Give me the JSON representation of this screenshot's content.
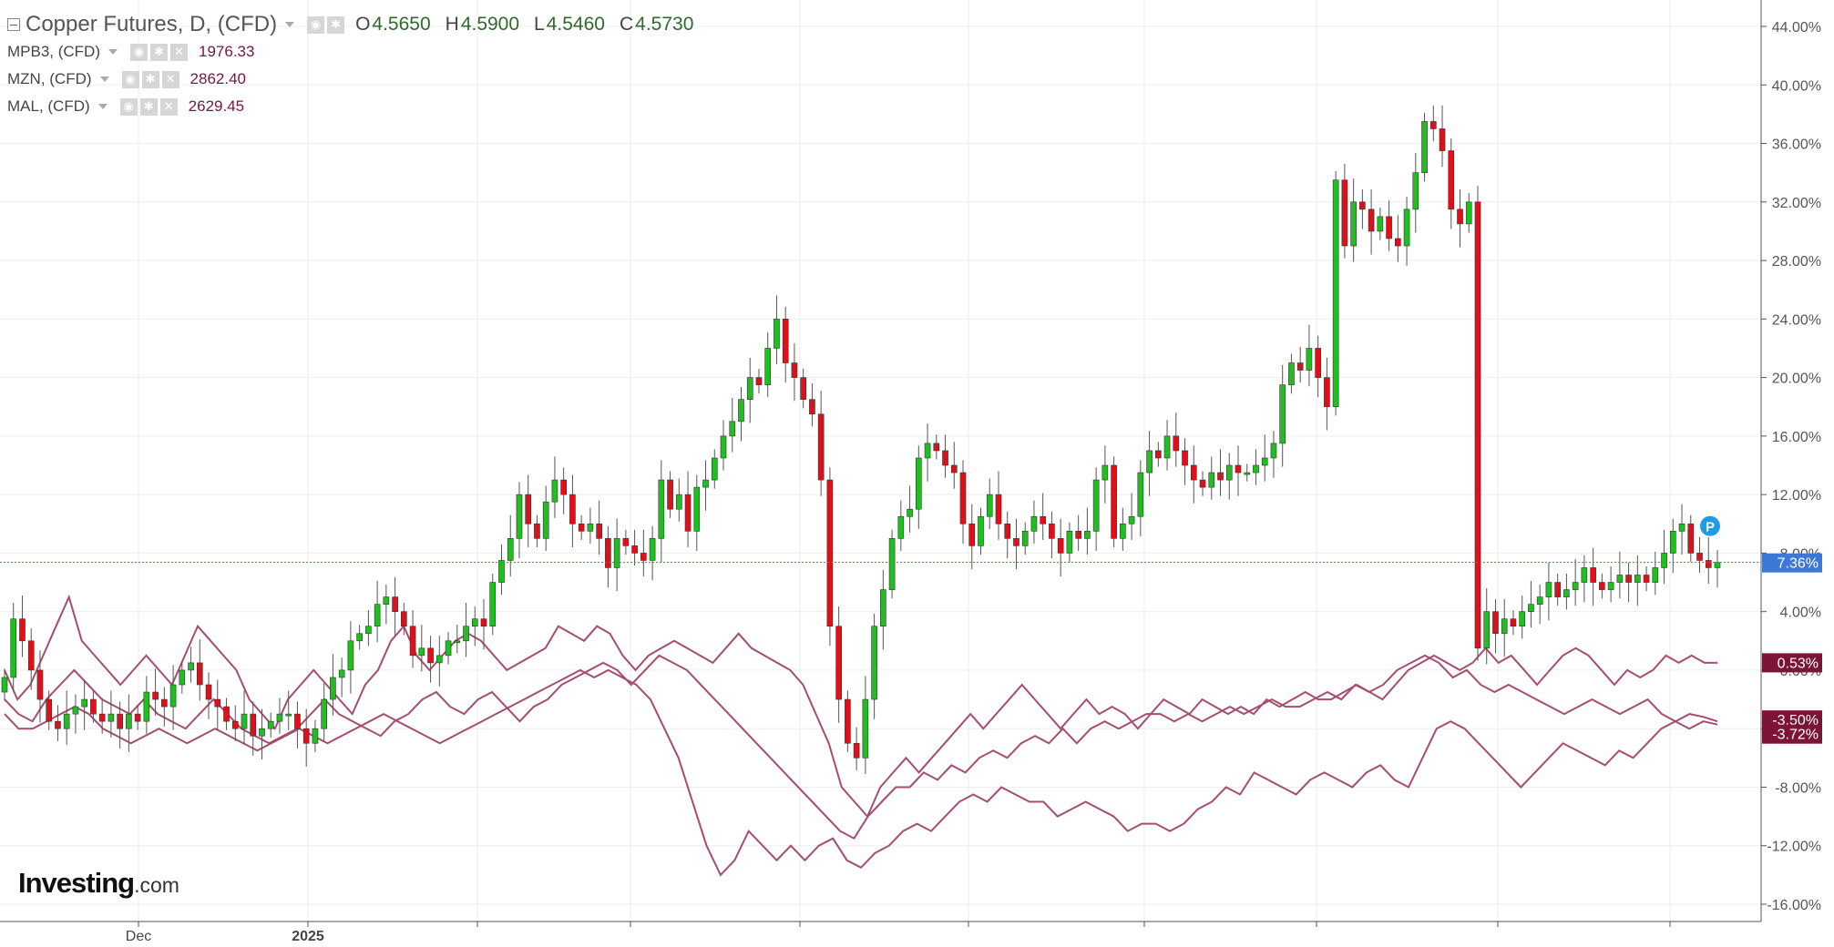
{
  "legend": {
    "main_title": "Copper Futures, D, (CFD)",
    "open_key": "O",
    "open": "4.5650",
    "high_key": "H",
    "high": "4.5900",
    "low_key": "L",
    "low": "4.5460",
    "close_key": "C",
    "close": "4.5730",
    "series": [
      {
        "name": "MPB3, (CFD)",
        "value": "1976.33"
      },
      {
        "name": "MZN, (CFD)",
        "value": "2862.40"
      },
      {
        "name": "MAL, (CFD)",
        "value": "2629.45"
      }
    ]
  },
  "brand": {
    "name": "Investing",
    "suffix": ".com"
  },
  "colors": {
    "up": "#1fbf1f",
    "down": "#e0101a",
    "compare_line": "#a64d6d",
    "badge_main": "#3c78d8",
    "badge_compare": "#7c1437",
    "grid": "#eeeeee"
  },
  "chart_data": {
    "type": "candlestick",
    "y_axis": {
      "unit": "%",
      "min": -16,
      "max": 44,
      "ticks": [
        "44.00%",
        "40.00%",
        "36.00%",
        "32.00%",
        "28.00%",
        "24.00%",
        "20.00%",
        "16.00%",
        "12.00%",
        "8.00%",
        "4.00%",
        "0.00%",
        "-4.00%",
        "-8.00%",
        "-12.00%",
        "-16.00%"
      ]
    },
    "x_axis": {
      "labels": [
        "Dec",
        "2025"
      ]
    },
    "last_value_labels": [
      "7.36%",
      "0.53%",
      "-3.50%",
      "-3.72%"
    ],
    "marker_label": "P",
    "copper_close_pct": [
      -0.5,
      3.5,
      2,
      0,
      -2,
      -3.5,
      -4,
      -3,
      -2.5,
      -2,
      -3,
      -3.5,
      -3,
      -4,
      -3,
      -3.5,
      -1.5,
      -2,
      -2.5,
      -1,
      0,
      0.5,
      -1,
      -2,
      -2.5,
      -3.5,
      -4,
      -3,
      -4.5,
      -4,
      -3.5,
      -3,
      -3,
      -4,
      -5,
      -4,
      -2,
      -0.5,
      0,
      2,
      2.5,
      3,
      4.5,
      5,
      4,
      3,
      1,
      1.5,
      0.5,
      1,
      2,
      2,
      3,
      3.5,
      3,
      6,
      7.5,
      9,
      12,
      10,
      9,
      11.5,
      13,
      12,
      10,
      9.5,
      10,
      9,
      7,
      9,
      8.5,
      8,
      7.5,
      9,
      13,
      11,
      12,
      9.5,
      12.5,
      13,
      14.5,
      16,
      17,
      18.5,
      20,
      19.5,
      22,
      24,
      21,
      20,
      18.5,
      17.5,
      13,
      3,
      -2,
      -5,
      -6,
      -2,
      3,
      5.5,
      9,
      10.5,
      11,
      14.5,
      15.5,
      15,
      14,
      13.5,
      10,
      8.5,
      10.5,
      12,
      10,
      9,
      8.5,
      9.5,
      10.5,
      10,
      9,
      8,
      9.5,
      9,
      9.5,
      13,
      14,
      9,
      10,
      10.5,
      13.5,
      15,
      14.5,
      16,
      15,
      14,
      13,
      12.5,
      13.5,
      13,
      14,
      13.5,
      13.5,
      14,
      14.5,
      15.5,
      19.5,
      21,
      20.5,
      22,
      20,
      18,
      33.5,
      29,
      32,
      31.5,
      30,
      31,
      29.5,
      29,
      31.5,
      34,
      37.5,
      37,
      35.5,
      31.5,
      30.5,
      32,
      1.5,
      4,
      2.5,
      3.5,
      3,
      4,
      4.5,
      5,
      6,
      5,
      5.5,
      6,
      7,
      6,
      5.5,
      6,
      6.5,
      6,
      6.5,
      6,
      7,
      8,
      9.5,
      10,
      8,
      7.5,
      7,
      7.36
    ],
    "series": [
      {
        "name": "MPB3, (CFD)",
        "last": "0.53%",
        "values": [
          0,
          -2,
          -1,
          1,
          3,
          5,
          2,
          1,
          0,
          -1,
          0,
          1,
          0,
          -1,
          1,
          3,
          2,
          1,
          0,
          -2,
          -3,
          -4,
          -2,
          -1,
          0,
          -1,
          -2,
          -3,
          -1,
          0,
          2,
          3,
          1,
          0,
          1,
          2,
          2.5,
          2,
          1,
          0,
          0.5,
          1,
          1.5,
          3,
          2.5,
          2,
          3,
          2.5,
          1,
          0,
          1,
          1.5,
          2,
          1.5,
          1,
          0.5,
          1.5,
          2.5,
          1.5,
          1,
          0.5,
          0,
          -1,
          -3,
          -5,
          -8,
          -9,
          -10,
          -8,
          -7,
          -6,
          -7,
          -6,
          -5,
          -4,
          -3,
          -4,
          -3,
          -2,
          -1,
          -2,
          -3,
          -4,
          -3,
          -2,
          -3,
          -2.5,
          -3,
          -4,
          -3,
          -2,
          -2.5,
          -3,
          -2,
          -2.5,
          -3,
          -2.5,
          -3,
          -2,
          -2.5,
          -2,
          -1.5,
          -2,
          -2,
          -1.5,
          -1,
          -1.5,
          -2,
          -1,
          0,
          0.5,
          1,
          0.5,
          0,
          0.5,
          1.5,
          0.5,
          1,
          0,
          -1,
          0,
          1,
          1.5,
          1,
          0,
          -1,
          0,
          -0.5,
          0,
          1,
          0.5,
          1,
          0.5,
          0.5
        ]
      },
      {
        "name": "MZN, (CFD)",
        "last": "-3.50%",
        "values": [
          -2,
          -3,
          -3.5,
          -2,
          -1,
          0,
          -1,
          -2,
          -2.5,
          -3,
          -2,
          -3,
          -3.5,
          -4,
          -3,
          -2,
          -3,
          -4,
          -4.5,
          -5,
          -4.5,
          -4,
          -3,
          -2,
          -3,
          -3.5,
          -4,
          -4.5,
          -3.5,
          -3,
          -2,
          -1.5,
          -2.5,
          -3,
          -2,
          -1.5,
          -2.5,
          -3.5,
          -2.5,
          -2,
          -1,
          -0.5,
          0,
          0.5,
          0,
          -1,
          0,
          1,
          0.5,
          0,
          -1,
          -2,
          -3,
          -4,
          -5,
          -6,
          -7,
          -8,
          -9,
          -10,
          -11,
          -11.5,
          -10,
          -9,
          -8,
          -8,
          -7,
          -7.5,
          -6.5,
          -7,
          -6,
          -5.5,
          -6,
          -5,
          -4.5,
          -5,
          -4,
          -5,
          -4,
          -3.5,
          -4,
          -3.5,
          -3,
          -3,
          -3.5,
          -3,
          -3.5,
          -3,
          -2.5,
          -3,
          -2.5,
          -2,
          -2.5,
          -2.5,
          -2,
          -1.5,
          -2,
          -1,
          -1.5,
          -1,
          0,
          0.5,
          1,
          0.5,
          -0.5,
          0,
          -1,
          -1.5,
          -1,
          -1.5,
          -2,
          -2.5,
          -3,
          -2.5,
          -2,
          -2.5,
          -3,
          -2.5,
          -2,
          -3,
          -3.5,
          -3,
          -3.2,
          -3.5
        ]
      },
      {
        "name": "MAL, (CFD)",
        "last": "-3.72%",
        "values": [
          -3,
          -4,
          -4,
          -3.5,
          -3,
          -2.5,
          -3,
          -4,
          -4.5,
          -5,
          -4.5,
          -4,
          -4.5,
          -5,
          -4.5,
          -4,
          -4.5,
          -5,
          -5.5,
          -5,
          -4.5,
          -4,
          -4.5,
          -5,
          -4.5,
          -4,
          -3.5,
          -3,
          -3.5,
          -4,
          -4.5,
          -5,
          -4.5,
          -4,
          -3.5,
          -3,
          -2.5,
          -2,
          -1.5,
          -1,
          -0.5,
          0,
          -0.5,
          0,
          -0.5,
          -1,
          -2,
          -4,
          -6,
          -9,
          -12,
          -14,
          -13,
          -11,
          -12,
          -13,
          -12,
          -13,
          -12,
          -11.5,
          -13,
          -13.5,
          -12.5,
          -12,
          -11,
          -10.5,
          -11,
          -10,
          -9,
          -8.5,
          -9,
          -8,
          -8.5,
          -9,
          -9,
          -10,
          -9.5,
          -9,
          -9.5,
          -10,
          -11,
          -10.5,
          -10.5,
          -11,
          -10.5,
          -9.5,
          -9,
          -8,
          -8.5,
          -7,
          -7.5,
          -8,
          -8.5,
          -7.5,
          -7,
          -7.5,
          -8,
          -7,
          -6.5,
          -7.5,
          -8,
          -6,
          -4,
          -3.5,
          -4,
          -5,
          -6,
          -7,
          -8,
          -7,
          -6,
          -5,
          -5.5,
          -6,
          -6.5,
          -5.5,
          -6,
          -5,
          -4,
          -3.5,
          -4,
          -3.5,
          -3.72
        ]
      }
    ]
  }
}
